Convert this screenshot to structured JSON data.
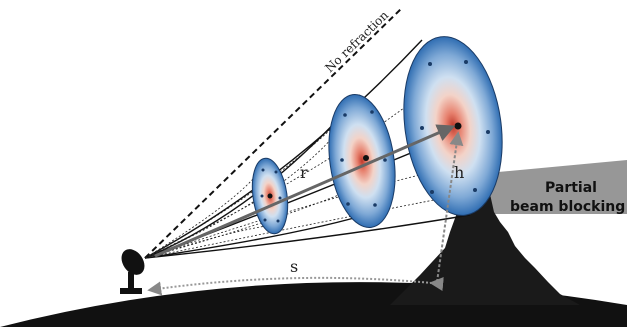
{
  "labels": {
    "no_refraction": "No refraction",
    "range": "r",
    "height": "h",
    "ground_distance": "s",
    "blocking": [
      "Partial",
      "beam blocking"
    ]
  },
  "colors": {
    "ground": "#111111",
    "mountain": "#1a1a1a",
    "blocking_band": "#8c8c8c",
    "beam_edge_light": "#dfe9f5",
    "beam_mid": "#5b8fc6",
    "beam_core": "#c0392b",
    "arrow": "#666666"
  },
  "icons": [
    "radar-dish-icon"
  ]
}
